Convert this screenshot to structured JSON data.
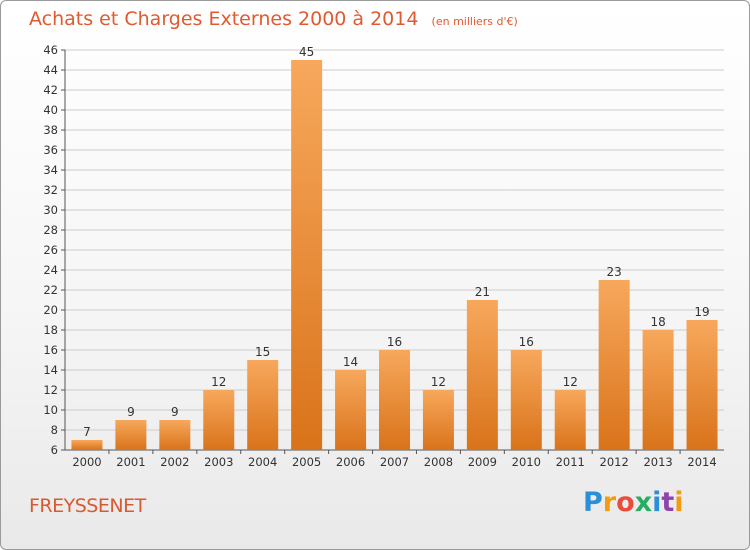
{
  "header": {
    "title": "Achats et Charges Externes 2000 à 2014",
    "subtitle": "(en milliers d'€)"
  },
  "footer": {
    "commune": "FREYSSENET",
    "logo_text": "Proxiti",
    "logo_colors": [
      "#2a8fd6",
      "#f39c12",
      "#e74c3c",
      "#27ae60",
      "#2a8fd6",
      "#8e44ad",
      "#f39c12"
    ]
  },
  "colors": {
    "bar_light": "#f5a65a",
    "bar_dark": "#d9731a",
    "title": "#e05a30",
    "grid": "#cccccc"
  },
  "chart_data": {
    "type": "bar",
    "title": "Achats et Charges Externes 2000 à 2014",
    "subtitle": "(en milliers d'€)",
    "categories": [
      "2000",
      "2001",
      "2002",
      "2003",
      "2004",
      "2005",
      "2006",
      "2007",
      "2008",
      "2009",
      "2010",
      "2011",
      "2012",
      "2013",
      "2014"
    ],
    "values": [
      7,
      9,
      9,
      12,
      15,
      45,
      14,
      16,
      12,
      21,
      16,
      12,
      23,
      18,
      19
    ],
    "ylim": [
      6,
      46
    ],
    "yticks": [
      6,
      8,
      10,
      12,
      14,
      16,
      18,
      20,
      22,
      24,
      26,
      28,
      30,
      32,
      34,
      36,
      38,
      40,
      42,
      44,
      46
    ],
    "grid": true,
    "legend": "none",
    "xlabel": "",
    "ylabel": ""
  }
}
